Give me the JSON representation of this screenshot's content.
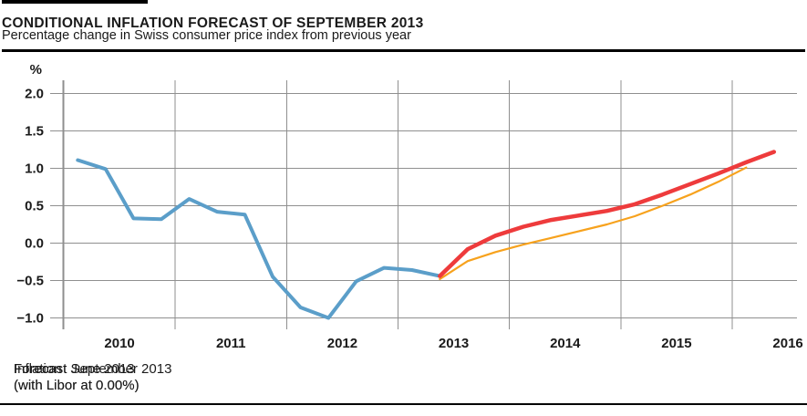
{
  "header": {
    "title": "CONDITIONAL INFLATION FORECAST OF SEPTEMBER 2013",
    "subtitle": "Percentage change in Swiss consumer price index from previous year"
  },
  "chart_data": {
    "type": "line",
    "title": "CONDITIONAL INFLATION FORECAST OF SEPTEMBER 2013",
    "subtitle": "Percentage change in Swiss consumer price index from previous year",
    "ylabel": "%",
    "xlabel": "",
    "ylim": [
      -1.25,
      2.3
    ],
    "xlim": [
      2009.99,
      2016.58
    ],
    "grid": true,
    "legend_position": "bottom",
    "y_ticks": [
      {
        "value": 2.0,
        "label": "2.0"
      },
      {
        "value": 1.5,
        "label": "1.5"
      },
      {
        "value": 1.0,
        "label": "1.0"
      },
      {
        "value": 0.5,
        "label": "0.5"
      },
      {
        "value": 0.0,
        "label": "0.0"
      },
      {
        "value": -0.5,
        "label": "−0.5"
      },
      {
        "value": -1.0,
        "label": "−1.0"
      }
    ],
    "x_ticks": [
      {
        "value": 2010,
        "label": "2010"
      },
      {
        "value": 2011,
        "label": "2011"
      },
      {
        "value": 2012,
        "label": "2012"
      },
      {
        "value": 2013,
        "label": "2013"
      },
      {
        "value": 2014,
        "label": "2014"
      },
      {
        "value": 2015,
        "label": "2015"
      },
      {
        "value": 2016,
        "label": "2016"
      }
    ],
    "series": [
      {
        "name": "Inflation",
        "color": "#5B9EC9",
        "stroke_width": 4,
        "x": [
          2010.125,
          2010.375,
          2010.625,
          2010.875,
          2011.125,
          2011.375,
          2011.625,
          2011.875,
          2012.125,
          2012.375,
          2012.625,
          2012.875,
          2013.125,
          2013.375
        ],
        "values": [
          1.11,
          0.99,
          0.33,
          0.32,
          0.59,
          0.42,
          0.38,
          -0.45,
          -0.86,
          -1.0,
          -0.51,
          -0.33,
          -0.36,
          -0.44
        ]
      },
      {
        "name": "Forecast September 2013 (with Libor at 0.00%)",
        "color": "#EE3B3C",
        "stroke_width": 4.5,
        "x": [
          2013.375,
          2013.625,
          2013.875,
          2014.125,
          2014.375,
          2014.625,
          2014.875,
          2015.125,
          2015.375,
          2015.625,
          2015.875,
          2016.125,
          2016.375
        ],
        "values": [
          -0.44,
          -0.08,
          0.1,
          0.22,
          0.31,
          0.37,
          0.43,
          0.52,
          0.65,
          0.79,
          0.93,
          1.08,
          1.22
        ]
      },
      {
        "name": "Forecast June 2013 (with Libor at 0.00%)",
        "color": "#F7A21D",
        "stroke_width": 2.2,
        "x": [
          2013.375,
          2013.625,
          2013.875,
          2014.125,
          2014.375,
          2014.625,
          2014.875,
          2015.125,
          2015.375,
          2015.625,
          2015.875,
          2016.125
        ],
        "values": [
          -0.48,
          -0.24,
          -0.12,
          -0.02,
          0.07,
          0.16,
          0.25,
          0.36,
          0.5,
          0.65,
          0.82,
          1.01
        ]
      }
    ]
  },
  "legend": {
    "items": [
      {
        "label": "Inflation",
        "sublabel": "",
        "color": "#5B9EC9"
      },
      {
        "label": "Forecast September 2013",
        "sublabel": "(with Libor at 0.00%)",
        "color": "#EE3B3C"
      },
      {
        "label": "Forecast June 2013",
        "sublabel": "(with Libor at 0.00%)",
        "color": "#F7A21D"
      }
    ]
  }
}
